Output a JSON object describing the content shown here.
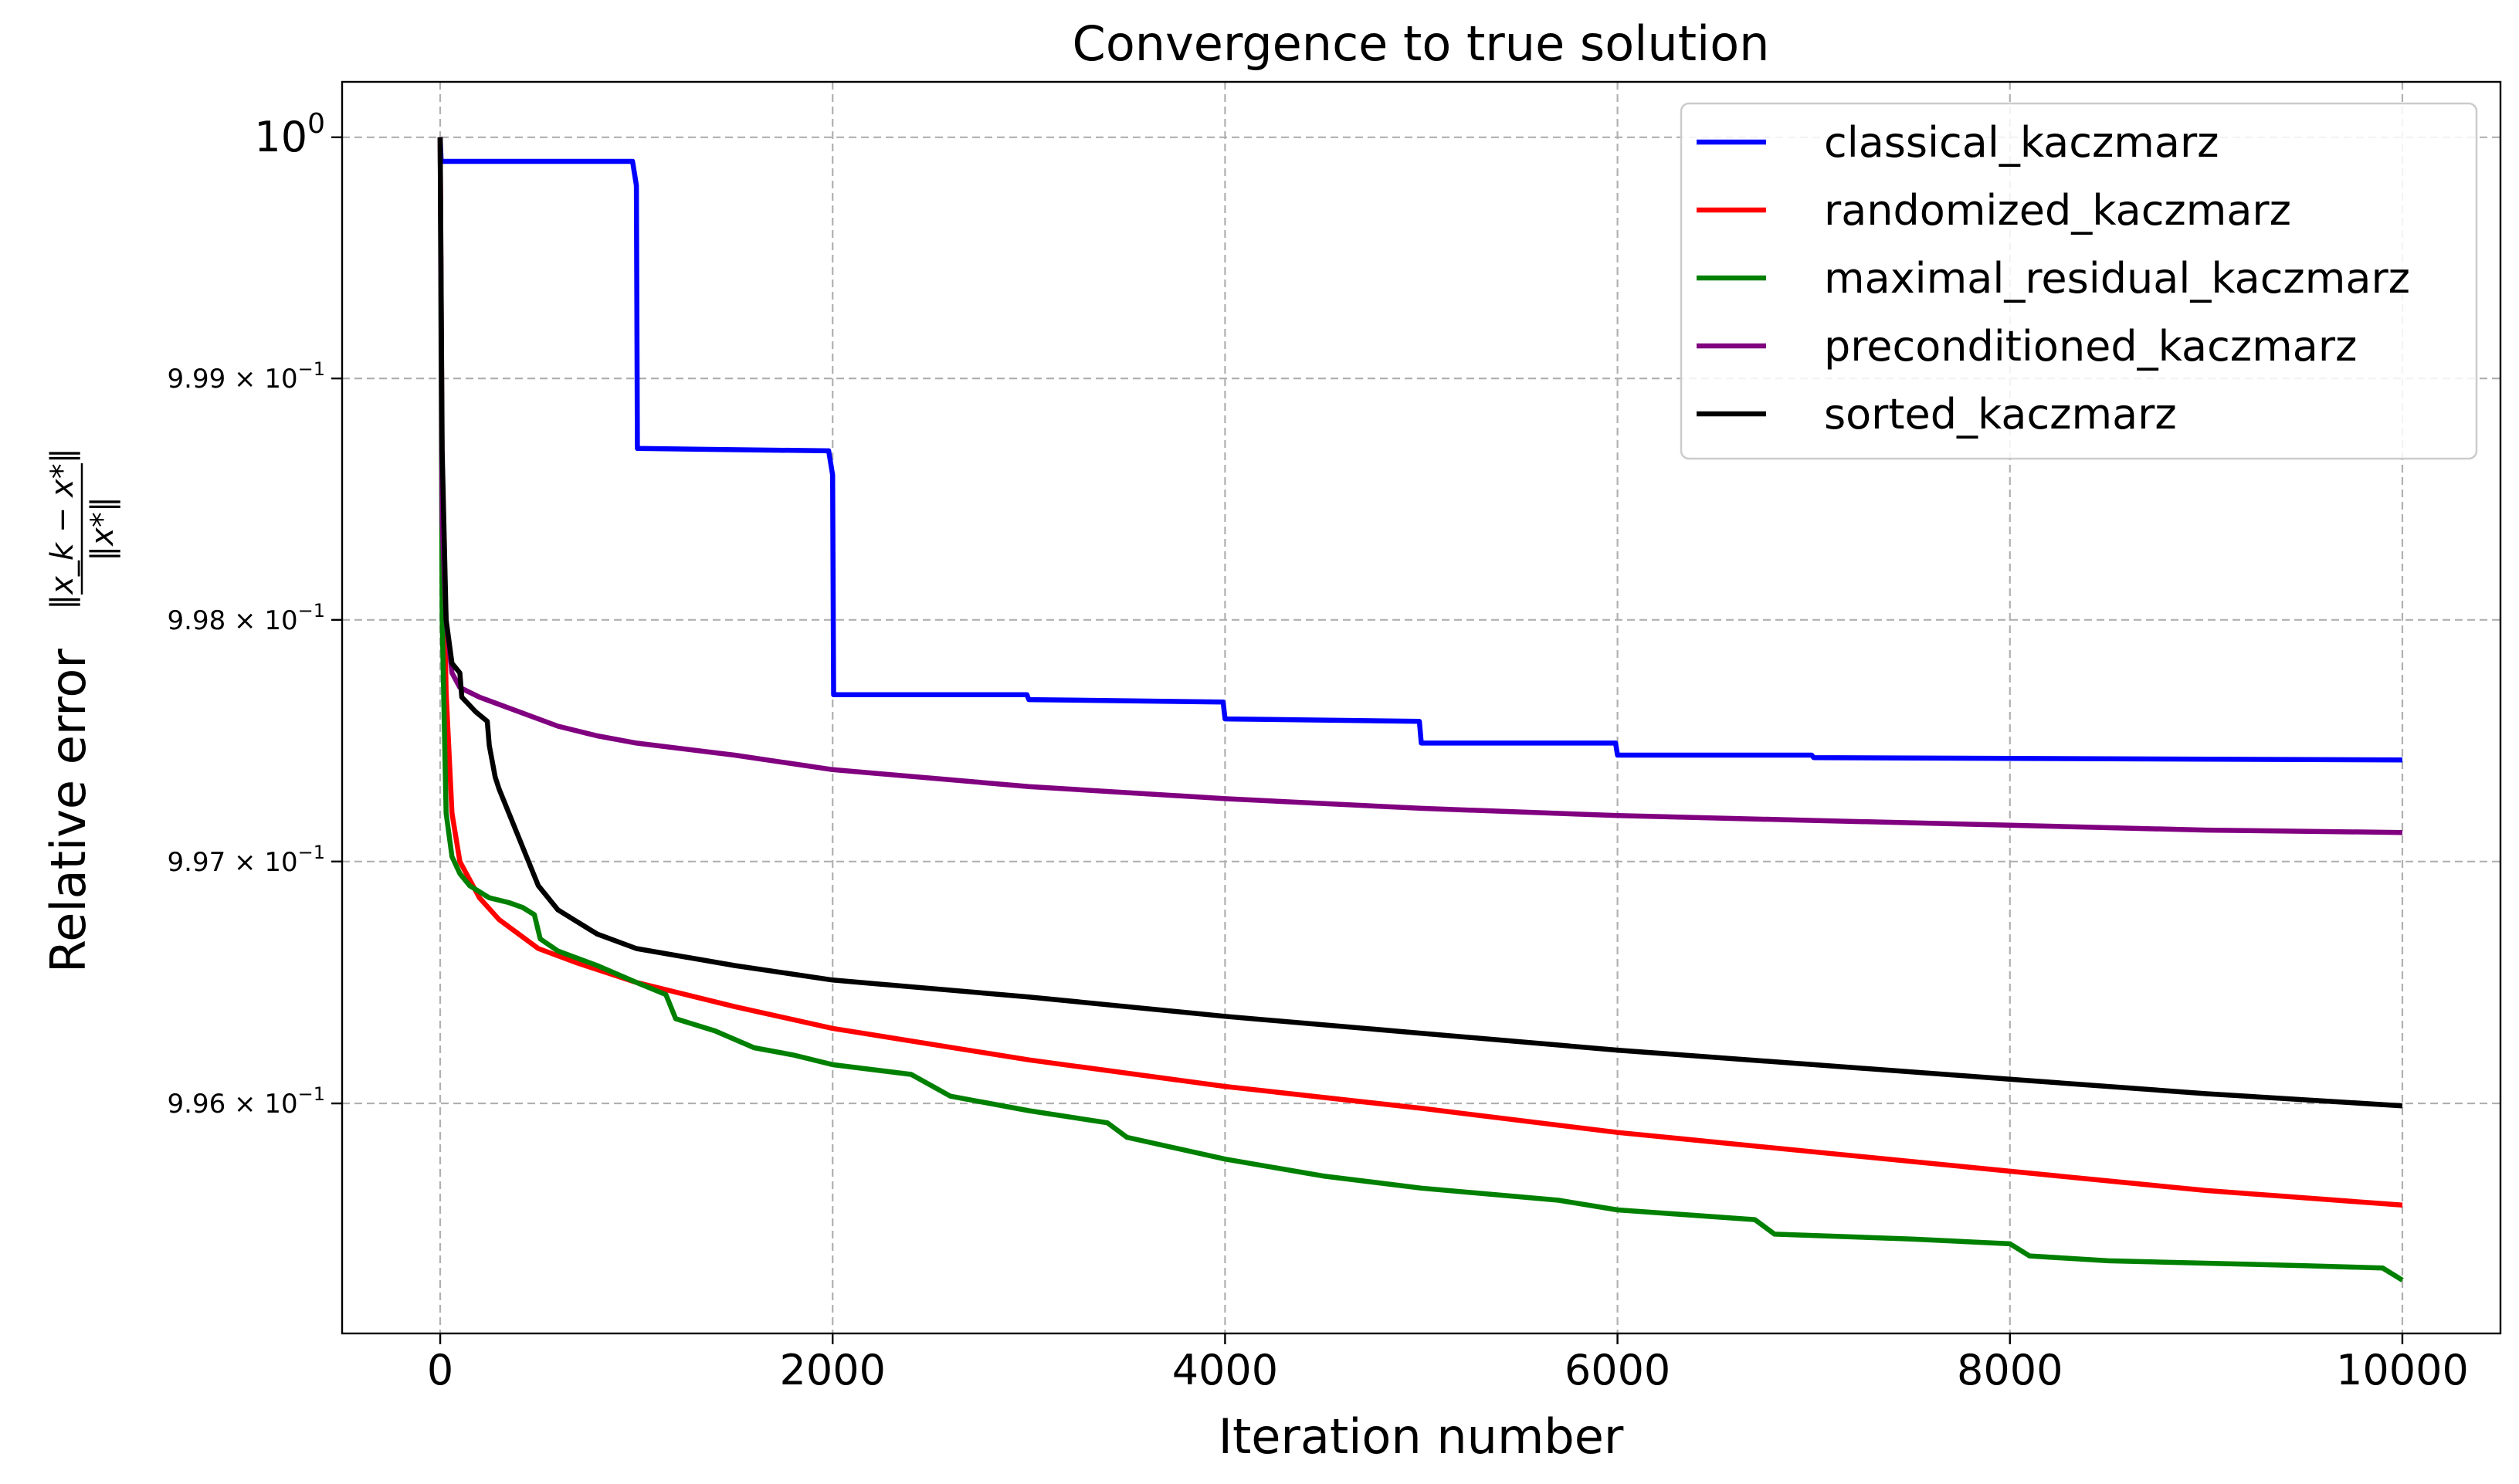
{
  "chart_data": {
    "type": "line",
    "title": "Convergence to true solution",
    "xlabel": "Iteration number",
    "ylabel": "Relative error",
    "ylabel_fraction": {
      "numerator": "‖x_k − x*‖",
      "denominator": "‖x*‖"
    },
    "yscale": "log",
    "xlim": [
      -500,
      10500
    ],
    "ylim": [
      0.99505,
      1.00023
    ],
    "grid": true,
    "legend_position": "top-right",
    "x_ticks": [
      {
        "value": 0,
        "label": "0"
      },
      {
        "value": 2000,
        "label": "2000"
      },
      {
        "value": 4000,
        "label": "4000"
      },
      {
        "value": 6000,
        "label": "6000"
      },
      {
        "value": 8000,
        "label": "8000"
      },
      {
        "value": 10000,
        "label": "10000"
      }
    ],
    "y_ticks": [
      {
        "value": 1.0,
        "base": "10",
        "exp": "0",
        "label": "10^0"
      },
      {
        "value": 0.999,
        "mantissa": "9.99",
        "times": "×",
        "base": "10",
        "exp": "−1",
        "label": "9.99 × 10^−1"
      },
      {
        "value": 0.998,
        "mantissa": "9.98",
        "times": "×",
        "base": "10",
        "exp": "−1",
        "label": "9.98 × 10^−1"
      },
      {
        "value": 0.997,
        "mantissa": "9.97",
        "times": "×",
        "base": "10",
        "exp": "−1",
        "label": "9.97 × 10^−1"
      },
      {
        "value": 0.996,
        "mantissa": "9.96",
        "times": "×",
        "base": "10",
        "exp": "−1",
        "label": "9.96 × 10^−1"
      }
    ],
    "series": [
      {
        "name": "classical_kaczmarz",
        "color": "#0000ff",
        "points": [
          [
            0,
            1.0
          ],
          [
            5,
            0.9999
          ],
          [
            980,
            0.9999
          ],
          [
            1000,
            0.9998
          ],
          [
            1005,
            0.99871
          ],
          [
            1980,
            0.9987
          ],
          [
            2000,
            0.9986
          ],
          [
            2005,
            0.99769
          ],
          [
            2990,
            0.99769
          ],
          [
            3000,
            0.99767
          ],
          [
            3990,
            0.99766
          ],
          [
            4000,
            0.99759
          ],
          [
            4990,
            0.99758
          ],
          [
            5000,
            0.99749
          ],
          [
            5990,
            0.99749
          ],
          [
            6000,
            0.99744
          ],
          [
            6990,
            0.99744
          ],
          [
            7000,
            0.99743
          ],
          [
            10000,
            0.99742
          ]
        ]
      },
      {
        "name": "randomized_kaczmarz",
        "color": "#ff0000",
        "points": [
          [
            0,
            1.0
          ],
          [
            10,
            0.9986
          ],
          [
            30,
            0.9977
          ],
          [
            60,
            0.9972
          ],
          [
            100,
            0.997
          ],
          [
            200,
            0.99685
          ],
          [
            300,
            0.99676
          ],
          [
            500,
            0.99664
          ],
          [
            700,
            0.99658
          ],
          [
            1000,
            0.9965
          ],
          [
            1500,
            0.9964
          ],
          [
            2000,
            0.99631
          ],
          [
            3000,
            0.99618
          ],
          [
            4000,
            0.99607
          ],
          [
            5000,
            0.99598
          ],
          [
            6000,
            0.99588
          ],
          [
            7000,
            0.9958
          ],
          [
            8000,
            0.99572
          ],
          [
            9000,
            0.99564
          ],
          [
            10000,
            0.99558
          ]
        ]
      },
      {
        "name": "maximal_residual_kaczmarz",
        "color": "#008000",
        "points": [
          [
            0,
            1.0
          ],
          [
            10,
            0.998
          ],
          [
            30,
            0.9972
          ],
          [
            60,
            0.99702
          ],
          [
            100,
            0.99695
          ],
          [
            150,
            0.9969
          ],
          [
            250,
            0.99685
          ],
          [
            350,
            0.99683
          ],
          [
            420,
            0.99681
          ],
          [
            480,
            0.99678
          ],
          [
            510,
            0.99668
          ],
          [
            600,
            0.99663
          ],
          [
            800,
            0.99657
          ],
          [
            1000,
            0.9965
          ],
          [
            1150,
            0.99645
          ],
          [
            1200,
            0.99635
          ],
          [
            1400,
            0.9963
          ],
          [
            1600,
            0.99623
          ],
          [
            1800,
            0.9962
          ],
          [
            2000,
            0.99616
          ],
          [
            2400,
            0.99612
          ],
          [
            2600,
            0.99603
          ],
          [
            3000,
            0.99597
          ],
          [
            3400,
            0.99592
          ],
          [
            3500,
            0.99586
          ],
          [
            4000,
            0.99577
          ],
          [
            4500,
            0.9957
          ],
          [
            5000,
            0.99565
          ],
          [
            5700,
            0.9956
          ],
          [
            6000,
            0.99556
          ],
          [
            6700,
            0.99552
          ],
          [
            6800,
            0.99546
          ],
          [
            7500,
            0.99544
          ],
          [
            8000,
            0.99542
          ],
          [
            8100,
            0.99537
          ],
          [
            8500,
            0.99535
          ],
          [
            9500,
            0.99533
          ],
          [
            9900,
            0.99532
          ],
          [
            10000,
            0.99527
          ]
        ]
      },
      {
        "name": "preconditioned_kaczmarz",
        "color": "#800080",
        "points": [
          [
            0,
            1.0
          ],
          [
            10,
            0.9984
          ],
          [
            30,
            0.998
          ],
          [
            60,
            0.99778
          ],
          [
            100,
            0.99772
          ],
          [
            200,
            0.99768
          ],
          [
            400,
            0.99762
          ],
          [
            600,
            0.99756
          ],
          [
            800,
            0.99752
          ],
          [
            1000,
            0.99749
          ],
          [
            1500,
            0.99744
          ],
          [
            2000,
            0.99738
          ],
          [
            3000,
            0.99731
          ],
          [
            4000,
            0.99726
          ],
          [
            5000,
            0.99722
          ],
          [
            6000,
            0.99719
          ],
          [
            7000,
            0.99717
          ],
          [
            8000,
            0.99715
          ],
          [
            9000,
            0.99713
          ],
          [
            10000,
            0.99712
          ]
        ]
      },
      {
        "name": "sorted_kaczmarz",
        "color": "#000000",
        "points": [
          [
            0,
            1.0
          ],
          [
            10,
            0.9987
          ],
          [
            30,
            0.998
          ],
          [
            60,
            0.99782
          ],
          [
            100,
            0.99778
          ],
          [
            110,
            0.99768
          ],
          [
            180,
            0.99762
          ],
          [
            240,
            0.99758
          ],
          [
            250,
            0.99748
          ],
          [
            280,
            0.99735
          ],
          [
            300,
            0.9973
          ],
          [
            400,
            0.9971
          ],
          [
            450,
            0.997
          ],
          [
            500,
            0.9969
          ],
          [
            600,
            0.9968
          ],
          [
            700,
            0.99675
          ],
          [
            800,
            0.9967
          ],
          [
            1000,
            0.99664
          ],
          [
            1500,
            0.99657
          ],
          [
            2000,
            0.99651
          ],
          [
            3000,
            0.99644
          ],
          [
            4000,
            0.99636
          ],
          [
            5000,
            0.99629
          ],
          [
            6000,
            0.99622
          ],
          [
            7000,
            0.99616
          ],
          [
            8000,
            0.9961
          ],
          [
            9000,
            0.99604
          ],
          [
            10000,
            0.99599
          ]
        ]
      }
    ]
  }
}
